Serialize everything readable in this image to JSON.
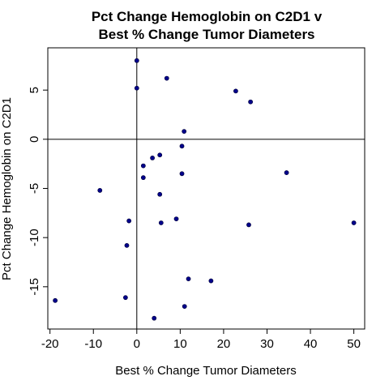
{
  "chart_data": {
    "type": "scatter",
    "title_lines": [
      "Pct Change Hemoglobin on C2D1 v",
      "Best % Change Tumor Diameters"
    ],
    "xlabel": "Best % Change Tumor Diameters",
    "ylabel": "Pct Change Hemoglobin on C2D1",
    "xlim": [
      -20.5,
      52.5
    ],
    "ylim": [
      -19.3,
      9.3
    ],
    "x_ticks": [
      -20,
      -10,
      0,
      10,
      20,
      30,
      40,
      50
    ],
    "y_ticks": [
      -15,
      -10,
      -5,
      0,
      5
    ],
    "reference_lines": {
      "x": 0,
      "y": 0
    },
    "grid": false,
    "point_color": "#00008b",
    "points": [
      {
        "x": 0.0,
        "y": 8.0
      },
      {
        "x": 6.9,
        "y": 6.2
      },
      {
        "x": 0.0,
        "y": 5.2
      },
      {
        "x": 22.8,
        "y": 4.9
      },
      {
        "x": 26.2,
        "y": 3.8
      },
      {
        "x": 10.9,
        "y": 0.8
      },
      {
        "x": 10.4,
        "y": -0.7
      },
      {
        "x": 5.3,
        "y": -1.6
      },
      {
        "x": 3.6,
        "y": -1.9
      },
      {
        "x": 1.5,
        "y": -2.7
      },
      {
        "x": 10.4,
        "y": -3.5
      },
      {
        "x": 34.5,
        "y": -3.4
      },
      {
        "x": 1.5,
        "y": -3.9
      },
      {
        "x": -8.5,
        "y": -5.2
      },
      {
        "x": 5.3,
        "y": -5.6
      },
      {
        "x": 9.1,
        "y": -8.1
      },
      {
        "x": -1.8,
        "y": -8.3
      },
      {
        "x": 5.6,
        "y": -8.5
      },
      {
        "x": 25.8,
        "y": -8.7
      },
      {
        "x": 50.0,
        "y": -8.5
      },
      {
        "x": -2.3,
        "y": -10.8
      },
      {
        "x": 11.9,
        "y": -14.2
      },
      {
        "x": 17.1,
        "y": -14.4
      },
      {
        "x": -2.6,
        "y": -16.1
      },
      {
        "x": -18.8,
        "y": -16.4
      },
      {
        "x": 11.0,
        "y": -17.0
      },
      {
        "x": 4.0,
        "y": -18.2
      }
    ]
  }
}
